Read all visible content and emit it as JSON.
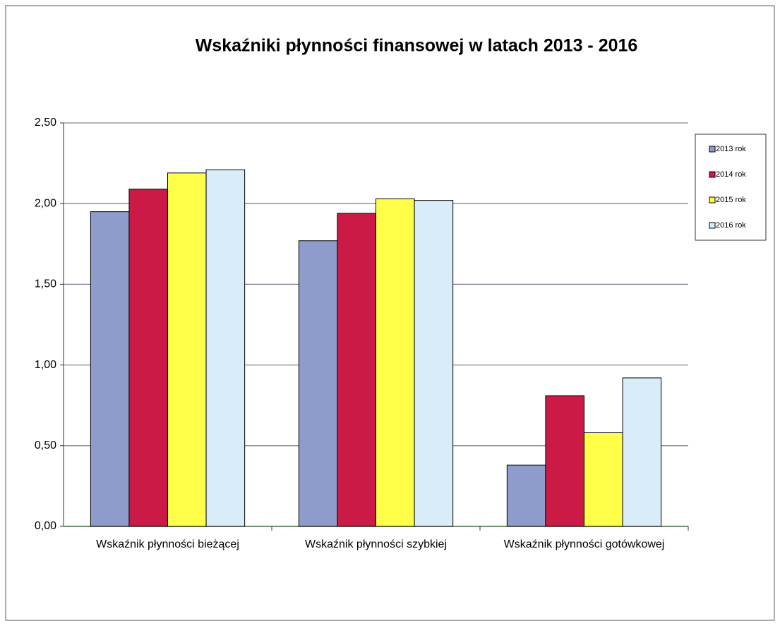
{
  "chart_data": {
    "type": "bar",
    "title": "Wskaźniki płynności finansowej w latach 2013 - 2016",
    "categories": [
      "Wskaźnik płynności bieżącej",
      "Wskaźnik płynności szybkiej",
      "Wskaźnik płynności gotówkowej"
    ],
    "series": [
      {
        "name": "2013 rok",
        "color": "#8e9ccc",
        "values": [
          1.95,
          1.77,
          0.38
        ]
      },
      {
        "name": "2014 rok",
        "color": "#cc1a47",
        "values": [
          2.09,
          1.94,
          0.81
        ]
      },
      {
        "name": "2015 rok",
        "color": "#ffff4a",
        "values": [
          2.19,
          2.03,
          0.58
        ]
      },
      {
        "name": "2016 rok",
        "color": "#d8edf8",
        "values": [
          2.21,
          2.02,
          0.92
        ]
      }
    ],
    "ylim": [
      0,
      2.5
    ],
    "yticks": [
      {
        "value": 0,
        "label": "0,00"
      },
      {
        "value": 0.5,
        "label": "0,50"
      },
      {
        "value": 1,
        "label": "1,00"
      },
      {
        "value": 1.5,
        "label": "1,50"
      },
      {
        "value": 2,
        "label": "2,00"
      },
      {
        "value": 2.5,
        "label": "2,50"
      }
    ],
    "grid": true,
    "legend": "right"
  }
}
